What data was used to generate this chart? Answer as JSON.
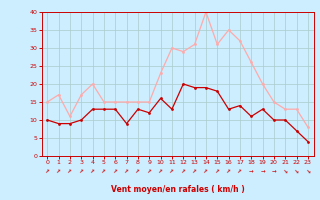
{
  "x": [
    0,
    1,
    2,
    3,
    4,
    5,
    6,
    7,
    8,
    9,
    10,
    11,
    12,
    13,
    14,
    15,
    16,
    17,
    18,
    19,
    20,
    21,
    22,
    23
  ],
  "vent_moyen": [
    10,
    9,
    9,
    10,
    13,
    13,
    13,
    9,
    13,
    12,
    16,
    13,
    20,
    19,
    19,
    18,
    13,
    14,
    11,
    13,
    10,
    10,
    7,
    4
  ],
  "rafales": [
    15,
    17,
    11,
    17,
    20,
    15,
    15,
    15,
    15,
    15,
    23,
    30,
    29,
    31,
    40,
    31,
    35,
    32,
    26,
    20,
    15,
    13,
    13,
    8
  ],
  "xlabel": "Vent moyen/en rafales ( km/h )",
  "ylim": [
    0,
    40
  ],
  "yticks": [
    0,
    5,
    10,
    15,
    20,
    25,
    30,
    35,
    40
  ],
  "xticks": [
    0,
    1,
    2,
    3,
    4,
    5,
    6,
    7,
    8,
    9,
    10,
    11,
    12,
    13,
    14,
    15,
    16,
    17,
    18,
    19,
    20,
    21,
    22,
    23
  ],
  "color_moyen": "#cc0000",
  "color_rafales": "#ffaaaa",
  "bg_color": "#cceeff",
  "grid_color": "#aacccc",
  "axis_color": "#cc0000",
  "label_color": "#cc0000",
  "tick_color": "#cc0000",
  "arrow_angles": [
    45,
    45,
    45,
    45,
    45,
    45,
    45,
    45,
    45,
    45,
    45,
    45,
    45,
    45,
    45,
    45,
    45,
    45,
    90,
    90,
    90,
    135,
    135,
    135
  ]
}
